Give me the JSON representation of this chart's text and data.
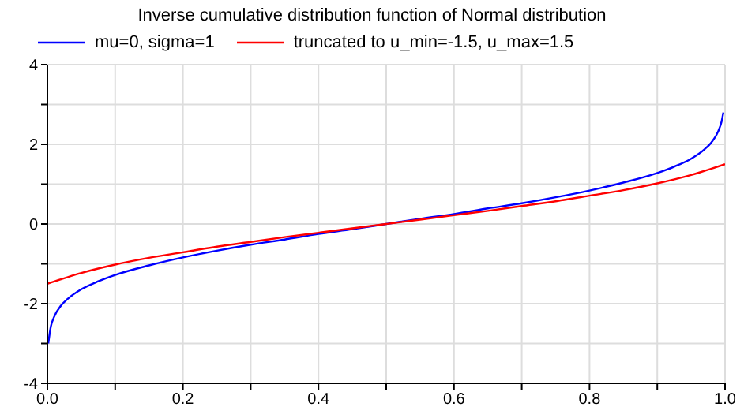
{
  "chart_data": {
    "type": "line",
    "title": "Inverse cumulative distribution function of Normal distribution",
    "legend": "top left",
    "grid": true,
    "marker": "none",
    "line_style": "solid",
    "xlim": [
      0,
      1
    ],
    "xticks": [
      {
        "value": 0,
        "label": "0.0"
      },
      {
        "value": 0.1,
        "label": null
      },
      {
        "value": 0.2,
        "label": "0.2"
      },
      {
        "value": 0.3,
        "label": null
      },
      {
        "value": 0.4,
        "label": "0.4"
      },
      {
        "value": 0.5,
        "label": null
      },
      {
        "value": 0.6,
        "label": "0.6"
      },
      {
        "value": 0.7,
        "label": null
      },
      {
        "value": 0.8,
        "label": "0.8"
      },
      {
        "value": 0.9,
        "label": null
      },
      {
        "value": 1,
        "label": "1.0"
      }
    ],
    "ylim": [
      -4,
      4
    ],
    "yticks": [
      -4,
      {
        "value": -3,
        "label": null
      },
      -2,
      {
        "value": -1,
        "label": null
      },
      0,
      {
        "value": 1,
        "label": null
      },
      2,
      {
        "value": 3,
        "label": null
      },
      4
    ],
    "series": [
      {
        "name": "mu=0, sigma=1",
        "color": "#0000ff",
        "x": [
          0.0013,
          0.005,
          0.01,
          0.02,
          0.03,
          0.05,
          0.075,
          0.1,
          0.15,
          0.2,
          0.25,
          0.3,
          0.35,
          0.4,
          0.45,
          0.5,
          0.55,
          0.6,
          0.65,
          0.7,
          0.75,
          0.8,
          0.85,
          0.9,
          0.925,
          0.95,
          0.97,
          0.98,
          0.99,
          0.995,
          0.9975
        ],
        "values": [
          -3.0,
          -2.58,
          -2.33,
          -2.05,
          -1.88,
          -1.64,
          -1.44,
          -1.28,
          -1.04,
          -0.84,
          -0.67,
          -0.52,
          -0.39,
          -0.25,
          -0.13,
          0,
          0.13,
          0.25,
          0.39,
          0.52,
          0.67,
          0.84,
          1.04,
          1.28,
          1.44,
          1.64,
          1.88,
          2.05,
          2.33,
          2.58,
          2.8
        ]
      },
      {
        "name": "truncated to u_min=-1.5, u_max=1.5",
        "color": "#ff0000",
        "x": [
          0,
          0.05,
          0.1,
          0.15,
          0.2,
          0.25,
          0.3,
          0.35,
          0.4,
          0.45,
          0.5,
          0.55,
          0.6,
          0.65,
          0.7,
          0.75,
          0.8,
          0.85,
          0.9,
          0.95,
          1
        ],
        "values": [
          -1.5,
          -1.23,
          -1.02,
          -0.85,
          -0.71,
          -0.57,
          -0.45,
          -0.33,
          -0.22,
          -0.11,
          0,
          0.11,
          0.22,
          0.33,
          0.45,
          0.57,
          0.71,
          0.85,
          1.02,
          1.23,
          1.5
        ]
      }
    ]
  }
}
